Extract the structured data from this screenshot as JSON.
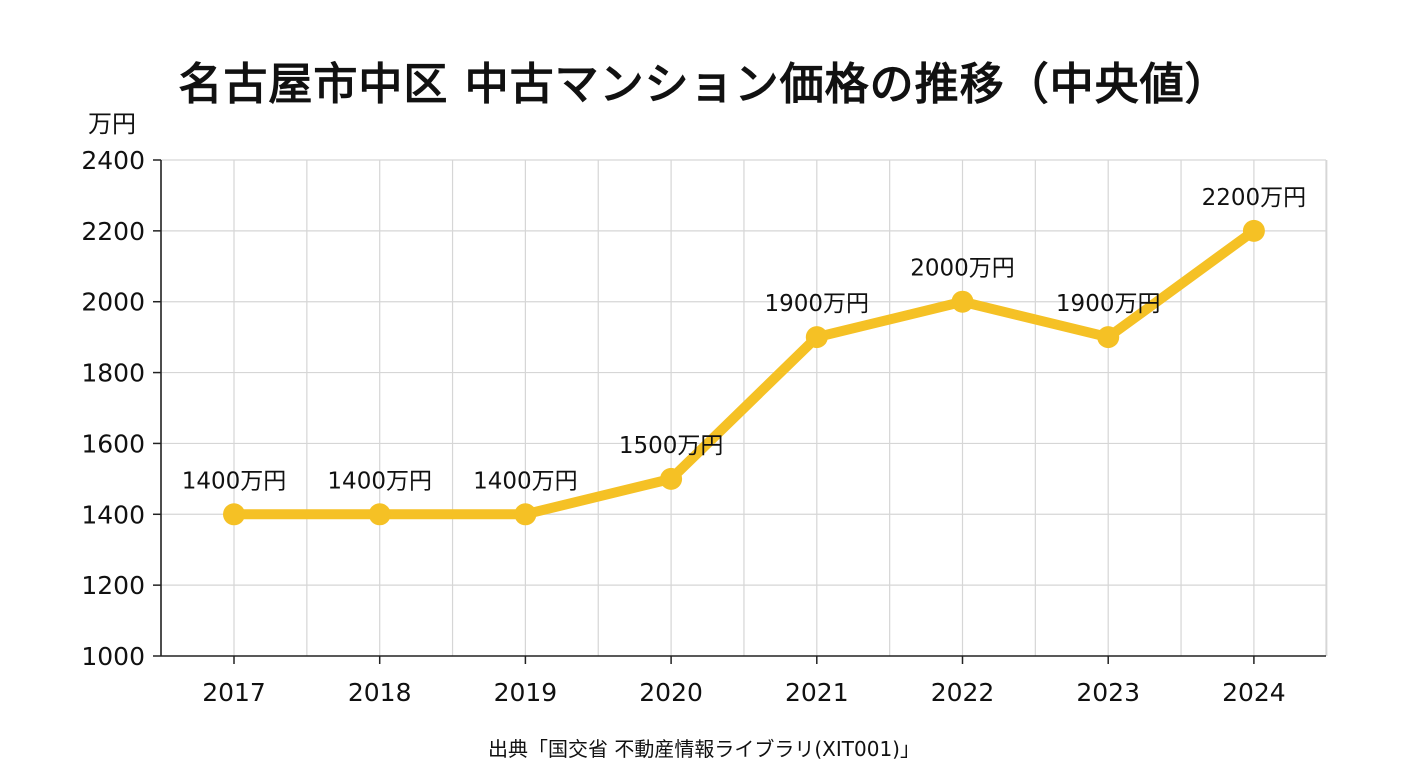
{
  "chart_data": {
    "type": "line",
    "title": "名古屋市中区 中古マンション価格の推移（中央値）",
    "ylabel": "万円",
    "xlabel": "",
    "categories": [
      "2017",
      "2018",
      "2019",
      "2020",
      "2021",
      "2022",
      "2023",
      "2024"
    ],
    "series": [
      {
        "values": [
          1400,
          1400,
          1400,
          1500,
          1900,
          2000,
          1900,
          2200
        ],
        "data_labels": [
          "1400万円",
          "1400万円",
          "1400万円",
          "1500万円",
          "1900万円",
          "2000万円",
          "1900万円",
          "2200万円"
        ],
        "color": "#F5C125"
      }
    ],
    "ylim": [
      1000,
      2400
    ],
    "yticks": [
      1000,
      1200,
      1400,
      1600,
      1800,
      2000,
      2200,
      2400
    ],
    "grid": true,
    "legend": "none"
  },
  "source": "出典「国交省 不動産情報ライブラリ(XIT001)」",
  "colors": {
    "line": "#F5C125",
    "grid": "#d6d6d6",
    "axis": "#222222"
  }
}
